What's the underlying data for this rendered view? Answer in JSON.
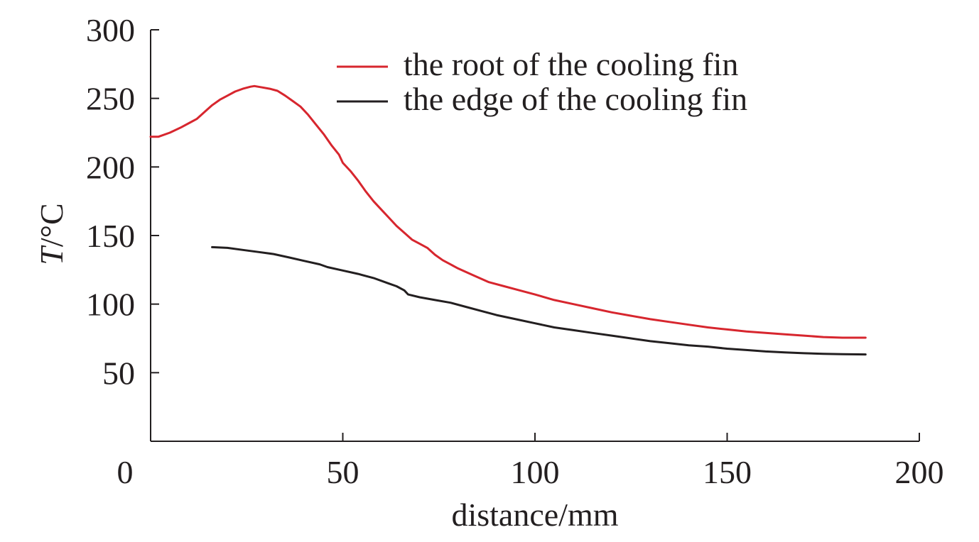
{
  "chart_data": {
    "type": "line",
    "title": "",
    "xlabel": "distance/mm",
    "ylabel_italic": "T",
    "ylabel_rest": "/°C",
    "xlim": [
      0,
      200
    ],
    "ylim": [
      0,
      300
    ],
    "x_ticks": [
      0,
      50,
      100,
      150,
      200
    ],
    "y_ticks": [
      50,
      100,
      150,
      200,
      250,
      300
    ],
    "x_tick_labels": [
      "0",
      "50",
      "100",
      "150",
      "200"
    ],
    "y_tick_labels": [
      "50",
      "100",
      "150",
      "200",
      "250",
      "300"
    ],
    "grid": false,
    "legend_position": "top-center",
    "series": [
      {
        "name": "the root of the cooling fin",
        "color": "#d7262e",
        "points": [
          [
            0,
            222
          ],
          [
            2,
            222
          ],
          [
            5,
            225
          ],
          [
            8,
            229
          ],
          [
            10,
            232
          ],
          [
            12,
            235
          ],
          [
            14,
            240
          ],
          [
            16,
            245
          ],
          [
            18,
            249
          ],
          [
            20,
            252
          ],
          [
            22,
            255
          ],
          [
            24,
            257
          ],
          [
            26,
            258.5
          ],
          [
            27,
            259
          ],
          [
            29,
            258
          ],
          [
            31,
            257
          ],
          [
            33,
            255.5
          ],
          [
            35,
            252
          ],
          [
            37,
            248
          ],
          [
            39,
            244
          ],
          [
            41,
            238
          ],
          [
            43,
            231
          ],
          [
            45,
            224
          ],
          [
            47,
            216
          ],
          [
            49,
            209
          ],
          [
            50,
            203
          ],
          [
            52,
            197
          ],
          [
            54,
            190
          ],
          [
            56,
            182
          ],
          [
            58,
            175
          ],
          [
            60,
            169
          ],
          [
            62,
            163
          ],
          [
            64,
            157
          ],
          [
            66,
            152
          ],
          [
            68,
            147
          ],
          [
            70,
            144
          ],
          [
            72,
            141
          ],
          [
            74,
            136
          ],
          [
            76,
            132
          ],
          [
            78,
            129
          ],
          [
            80,
            126
          ],
          [
            84,
            121
          ],
          [
            88,
            116
          ],
          [
            92,
            113
          ],
          [
            96,
            110
          ],
          [
            100,
            107
          ],
          [
            105,
            103
          ],
          [
            110,
            100
          ],
          [
            115,
            97
          ],
          [
            120,
            94
          ],
          [
            125,
            91.5
          ],
          [
            130,
            89
          ],
          [
            135,
            87
          ],
          [
            140,
            85
          ],
          [
            145,
            83
          ],
          [
            150,
            81.5
          ],
          [
            155,
            80
          ],
          [
            160,
            79
          ],
          [
            165,
            78
          ],
          [
            170,
            77
          ],
          [
            175,
            76
          ],
          [
            180,
            75.5
          ],
          [
            186,
            75.5
          ]
        ]
      },
      {
        "name": "the edge of the cooling fin",
        "color": "#231f20",
        "points": [
          [
            16,
            141.5
          ],
          [
            20,
            141
          ],
          [
            24,
            139.5
          ],
          [
            28,
            138
          ],
          [
            32,
            136.5
          ],
          [
            36,
            134
          ],
          [
            40,
            131.5
          ],
          [
            44,
            129
          ],
          [
            46,
            127
          ],
          [
            50,
            124.5
          ],
          [
            54,
            122
          ],
          [
            58,
            119
          ],
          [
            62,
            115
          ],
          [
            64,
            113
          ],
          [
            66,
            110
          ],
          [
            67,
            107
          ],
          [
            70,
            105
          ],
          [
            74,
            103
          ],
          [
            78,
            101
          ],
          [
            82,
            98
          ],
          [
            86,
            95
          ],
          [
            90,
            92
          ],
          [
            95,
            89
          ],
          [
            100,
            86
          ],
          [
            105,
            83
          ],
          [
            110,
            81
          ],
          [
            115,
            79
          ],
          [
            120,
            77
          ],
          [
            125,
            75
          ],
          [
            130,
            73
          ],
          [
            135,
            71.5
          ],
          [
            140,
            70
          ],
          [
            145,
            69
          ],
          [
            150,
            67.5
          ],
          [
            155,
            66.5
          ],
          [
            160,
            65.5
          ],
          [
            165,
            64.8
          ],
          [
            170,
            64.2
          ],
          [
            175,
            63.8
          ],
          [
            180,
            63.5
          ],
          [
            186,
            63.3
          ]
        ]
      }
    ]
  }
}
